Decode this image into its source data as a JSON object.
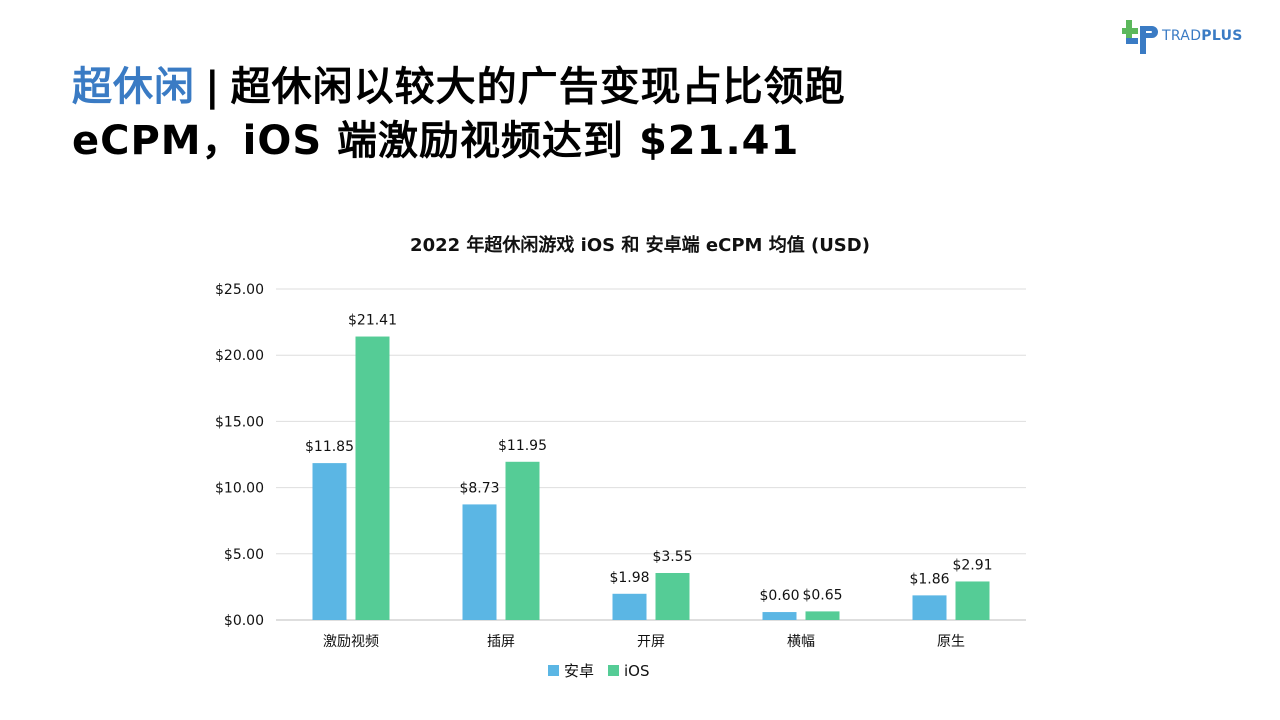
{
  "brand": {
    "logo_part1": "TRAD",
    "logo_part2": "PLUS",
    "logo_icon": "tradplus-logo-icon",
    "colors": {
      "green": "#5cb85c",
      "blue": "#3a7bc4"
    }
  },
  "headline": {
    "accent": "超休闲",
    "separator": "|",
    "line1_rest": "超休闲以较大的广告变现占比领跑",
    "line2": "eCPM，iOS 端激励视频达到 $21.41",
    "accent_color": "#3a7bc4"
  },
  "chart_data": {
    "type": "bar",
    "title": "2022 年超休闲游戏 iOS 和 安卓端 eCPM 均值 (USD)",
    "categories": [
      "激励视频",
      "插屏",
      "开屏",
      "横幅",
      "原生"
    ],
    "series": [
      {
        "name": "安卓",
        "values": [
          11.85,
          8.73,
          1.98,
          0.6,
          1.86
        ],
        "labels": [
          "$11.85",
          "$8.73",
          "$1.98",
          "$0.60",
          "$1.86"
        ],
        "color": "#5bb6e4"
      },
      {
        "name": "iOS",
        "values": [
          21.41,
          11.95,
          3.55,
          0.65,
          2.91
        ],
        "labels": [
          "$21.41",
          "$11.95",
          "$3.55",
          "$0.65",
          "$2.91"
        ],
        "color": "#55cc96"
      }
    ],
    "ylim": [
      0,
      25
    ],
    "yticks": [
      0,
      5,
      10,
      15,
      20,
      25
    ],
    "ytick_labels": [
      "$0.00",
      "$5.00",
      "$10.00",
      "$15.00",
      "$20.00",
      "$25.00"
    ],
    "grid": true,
    "legend_position": "bottom-center",
    "xlabel": "",
    "ylabel": ""
  }
}
